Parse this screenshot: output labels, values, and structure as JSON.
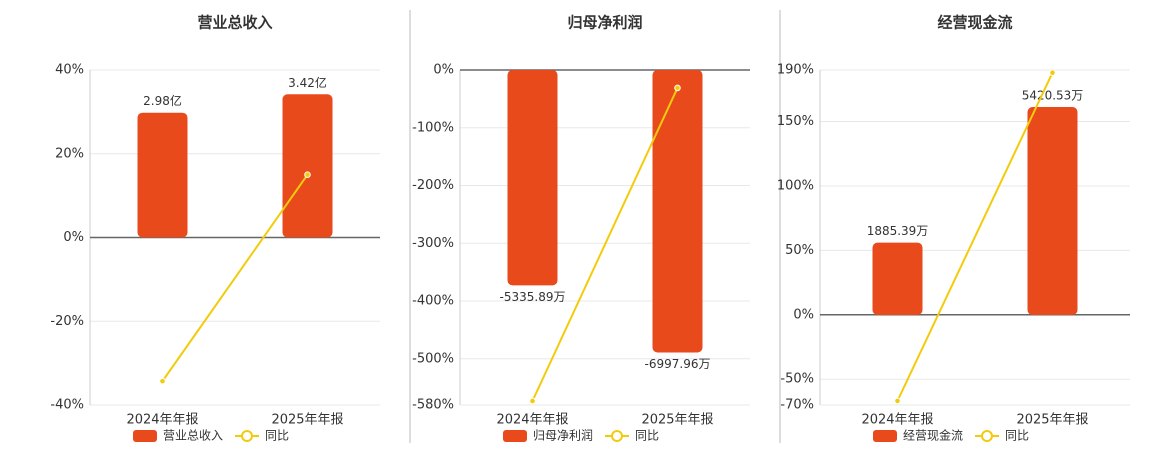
{
  "chart_data": [
    {
      "type": "bar",
      "title": "营业总收入",
      "categories": [
        "2024年年报",
        "2025年年报"
      ],
      "series": [
        {
          "name": "营业总收入",
          "type": "bar",
          "color": "#e84a1c",
          "axis": "y2",
          "values": [
            2.98,
            3.42
          ],
          "value_labels": [
            "2.98亿",
            "3.42亿"
          ]
        },
        {
          "name": "同比",
          "type": "line",
          "color": "#f2cc0c",
          "values": [
            -34.3,
            15.0
          ]
        }
      ],
      "ylim": [
        -40,
        40
      ],
      "yticks": [
        {
          "value": 40,
          "label": "40%"
        },
        {
          "value": 20,
          "label": "20%"
        },
        {
          "value": 0,
          "label": "0%"
        },
        {
          "value": -20,
          "label": "-20%"
        },
        {
          "value": -40,
          "label": "-40%"
        }
      ],
      "y2lim": [
        -4,
        4
      ],
      "grid": true
    },
    {
      "type": "bar",
      "title": "归母净利润",
      "categories": [
        "2024年年报",
        "2025年年报"
      ],
      "series": [
        {
          "name": "归母净利润",
          "type": "bar",
          "color": "#e84a1c",
          "axis": "y2",
          "values": [
            -5335.89,
            -6997.96
          ],
          "value_labels": [
            "-5335.89万",
            "-6997.96万"
          ]
        },
        {
          "name": "同比",
          "type": "line",
          "color": "#f2cc0c",
          "values": [
            -573,
            -31
          ]
        }
      ],
      "ylim": [
        -580,
        0
      ],
      "yticks": [
        {
          "value": 0,
          "label": "0%"
        },
        {
          "value": -100,
          "label": "-100%"
        },
        {
          "value": -200,
          "label": "-200%"
        },
        {
          "value": -300,
          "label": "-300%"
        },
        {
          "value": -400,
          "label": "-400%"
        },
        {
          "value": -500,
          "label": "-500%"
        },
        {
          "value": -580,
          "label": "-580%"
        }
      ],
      "y2lim": [
        -8300,
        0
      ],
      "grid": true
    },
    {
      "type": "bar",
      "title": "经营现金流",
      "categories": [
        "2024年年报",
        "2025年年报"
      ],
      "series": [
        {
          "name": "经营现金流",
          "type": "bar",
          "color": "#e84a1c",
          "axis": "y2",
          "values": [
            1885.39,
            5420.53
          ],
          "value_labels": [
            "1885.39万",
            "5420.53万"
          ]
        },
        {
          "name": "同比",
          "type": "line",
          "color": "#f2cc0c",
          "values": [
            -66.8,
            187.9
          ]
        }
      ],
      "ylim": [
        -70,
        190
      ],
      "yticks": [
        {
          "value": 190,
          "label": "190%"
        },
        {
          "value": 150,
          "label": "150%"
        },
        {
          "value": 100,
          "label": "100%"
        },
        {
          "value": 50,
          "label": "50%"
        },
        {
          "value": 0,
          "label": "0%"
        },
        {
          "value": -50,
          "label": "-50%"
        },
        {
          "value": -70,
          "label": "-70%"
        }
      ],
      "y2lim": [
        -2345,
        6385
      ],
      "grid": true
    }
  ]
}
